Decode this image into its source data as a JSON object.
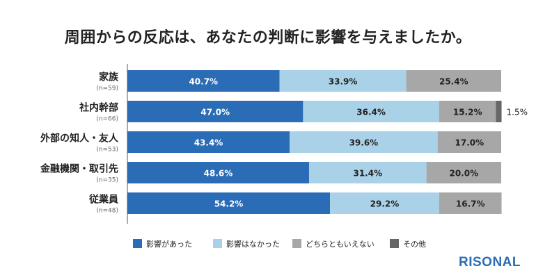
{
  "title": "周囲からの反応は、あなたの判断に影響を与えましたか。",
  "brand": "RISONAL",
  "colors": {
    "affected": "#2b6cb6",
    "not_affected": "#a9d1e8",
    "neither": "#a7a7a7",
    "other": "#666666"
  },
  "chart_data": {
    "type": "bar",
    "orientation": "horizontal",
    "stacked": true,
    "percent_stacked": true,
    "categories": [
      "家族",
      "社内幹部",
      "外部の知人・友人",
      "金融機関・取引先",
      "従業員"
    ],
    "sample_sizes": [
      "(n=59)",
      "(n=66)",
      "(n=53)",
      "(n=35)",
      "(n=48)"
    ],
    "series": [
      {
        "name": "影響があった",
        "values": [
          40.7,
          47.0,
          43.4,
          48.6,
          54.2
        ],
        "labels": [
          "40.7%",
          "47.0%",
          "43.4%",
          "48.6%",
          "54.2%"
        ]
      },
      {
        "name": "影響はなかった",
        "values": [
          33.9,
          36.4,
          39.6,
          31.4,
          29.2
        ],
        "labels": [
          "33.9%",
          "36.4%",
          "39.6%",
          "31.4%",
          "29.2%"
        ]
      },
      {
        "name": "どちらともいえない",
        "values": [
          25.4,
          15.2,
          17.0,
          20.0,
          16.7
        ],
        "labels": [
          "25.4%",
          "15.2%",
          "17.0%",
          "20.0%",
          "16.7%"
        ]
      },
      {
        "name": "その他",
        "values": [
          0,
          1.5,
          0,
          0,
          0
        ],
        "labels": [
          "",
          "1.5%",
          "",
          "",
          ""
        ]
      }
    ],
    "xlim": [
      0,
      100
    ],
    "legend_position": "bottom",
    "grid": false
  }
}
